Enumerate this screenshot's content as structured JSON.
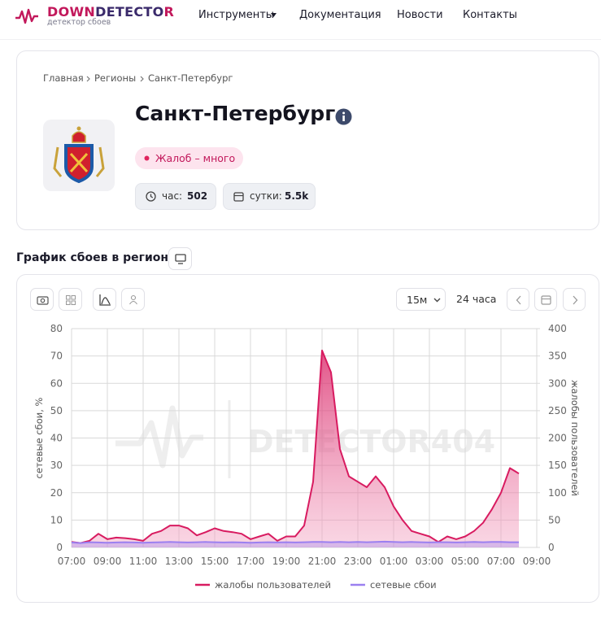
{
  "header": {
    "logo_down": "DOWN",
    "logo_detecto": "DETECTO",
    "logo_r": "R",
    "logo_tagline": "детектор сбоев",
    "nav": [
      "Инструменты",
      "Документация",
      "Новости",
      "Контакты"
    ]
  },
  "breadcrumbs": [
    "Главная",
    "Регионы",
    "Санкт-Петербург"
  ],
  "region": {
    "title": "Санкт-Петербург",
    "status": "Жалоб – много",
    "hour_label": "час:",
    "hour_value": "502",
    "day_label": "сутки:",
    "day_value": "5.5k"
  },
  "section_title": "График сбоев в регионе",
  "toolbar": {
    "interval": "15м",
    "range": "24 часа"
  },
  "chart_data": {
    "type": "line",
    "watermark": "DETECTOR404",
    "ylabel": "сетевые сбои, %",
    "y2label": "жалобы пользователей",
    "grid": true,
    "legend": "bottom",
    "x": [
      7,
      7.5,
      8,
      8.5,
      9,
      9.5,
      10,
      10.5,
      11,
      11.5,
      12,
      12.5,
      13,
      13.5,
      14,
      14.5,
      15,
      15.5,
      16,
      16.5,
      17,
      17.5,
      18,
      18.5,
      19,
      19.5,
      20,
      20.5,
      21,
      21.5,
      22,
      22.5,
      23,
      23.5,
      24,
      24.5,
      25,
      25.5,
      26,
      26.5,
      27,
      27.5,
      28,
      28.5,
      29,
      29.5,
      30,
      30.5,
      31,
      31.5,
      32
    ],
    "xlim": [
      7,
      33
    ],
    "xticks": [
      {
        "value": 7,
        "label": "07:00"
      },
      {
        "value": 9,
        "label": "09:00"
      },
      {
        "value": 11,
        "label": "11:00"
      },
      {
        "value": 13,
        "label": "13:00"
      },
      {
        "value": 15,
        "label": "15:00"
      },
      {
        "value": 17,
        "label": "17:00"
      },
      {
        "value": 19,
        "label": "19:00"
      },
      {
        "value": 21,
        "label": "21:00"
      },
      {
        "value": 23,
        "label": "23:00"
      },
      {
        "value": 25,
        "label": "01:00"
      },
      {
        "value": 27,
        "label": "03:00"
      },
      {
        "value": 29,
        "label": "05:00"
      },
      {
        "value": 31,
        "label": "07:00"
      },
      {
        "value": 33,
        "label": "09:00"
      }
    ],
    "ylim": [
      0,
      80
    ],
    "yticks": [
      0,
      10,
      20,
      30,
      40,
      50,
      60,
      70,
      80
    ],
    "y2lim": [
      0,
      400
    ],
    "y2ticks": [
      0,
      50,
      100,
      150,
      200,
      250,
      300,
      350,
      400
    ],
    "series": [
      {
        "name": "жалобы пользователей",
        "color": "#d81b60",
        "axis": "y2",
        "values": [
          10,
          8,
          12,
          25,
          15,
          18,
          17,
          15,
          12,
          25,
          30,
          40,
          40,
          35,
          22,
          28,
          35,
          30,
          28,
          25,
          15,
          20,
          25,
          12,
          20,
          20,
          40,
          120,
          360,
          320,
          180,
          130,
          120,
          110,
          130,
          110,
          75,
          50,
          30,
          25,
          20,
          10,
          20,
          15,
          20,
          30,
          45,
          70,
          100,
          145,
          135
        ]
      },
      {
        "name": "сетевые сбои",
        "color": "#9b80f0",
        "values": [
          1.8,
          1.6,
          1.9,
          1.8,
          1.7,
          1.8,
          1.9,
          1.8,
          1.7,
          1.8,
          1.9,
          2,
          1.9,
          1.8,
          1.9,
          2,
          1.9,
          1.8,
          1.9,
          1.8,
          1.7,
          1.8,
          1.9,
          1.8,
          1.9,
          1.8,
          1.9,
          2,
          2,
          1.9,
          2,
          1.9,
          2,
          1.9,
          2,
          2.1,
          2,
          1.9,
          2,
          1.9,
          1.8,
          1.9,
          1.9,
          1.8,
          1.9,
          2,
          1.9,
          2,
          2,
          1.9,
          1.9
        ]
      }
    ]
  }
}
